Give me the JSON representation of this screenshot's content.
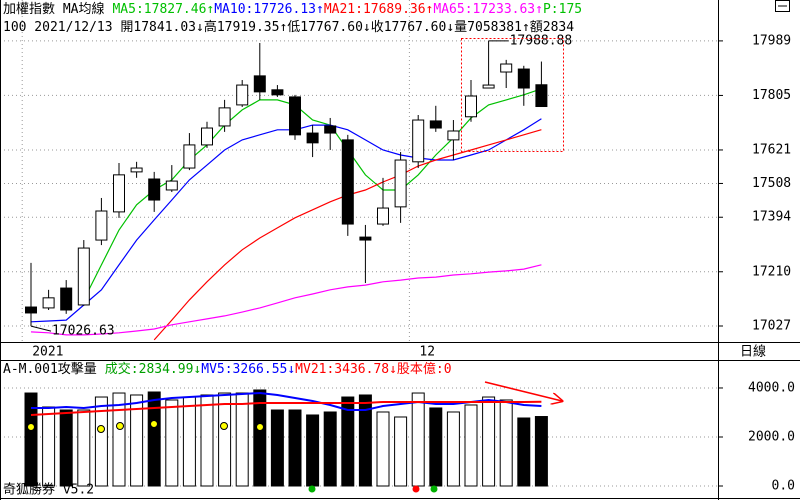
{
  "chart_data": [
    {
      "type": "candlestick",
      "title": "加權指數 MA均線",
      "info": "100 2021/12/13 開17841.03↓高17919.35↑低17767.60↓收17767.60↓量7058381↑額2834",
      "tail_label": "P:175",
      "tail_color": "#00c000",
      "categories": [
        "2021",
        null,
        null,
        null,
        null,
        null,
        null,
        null,
        null,
        null,
        null,
        null,
        null,
        null,
        null,
        null,
        null,
        null,
        null,
        null,
        null,
        null,
        "12",
        null,
        null,
        null,
        null,
        null,
        null,
        null
      ],
      "open": [
        17091,
        17088,
        17155,
        17098,
        17317,
        17412,
        17547,
        17523,
        17486,
        17560,
        17638,
        17702,
        17773,
        17871,
        17824,
        17800,
        17678,
        17702,
        17655,
        17327,
        17371,
        17429,
        17581,
        17719,
        17655,
        17733,
        17830,
        17884,
        17894,
        17841.03
      ],
      "high": [
        17240,
        17149,
        17182,
        17317,
        17459,
        17577,
        17581,
        17547,
        17570,
        17678,
        17716,
        17790,
        17857,
        17982,
        17840,
        17807,
        17705,
        17729,
        17672,
        17368,
        17527,
        17614,
        17739,
        17770,
        17722,
        17857,
        17988.88,
        17925,
        17905,
        17919.35
      ],
      "low": [
        17026.63,
        17081,
        17068,
        17095,
        17300,
        17392,
        17527,
        17412,
        17479,
        17553,
        17628,
        17682,
        17766,
        17790,
        17800,
        17655,
        17597,
        17621,
        17331,
        17172,
        17365,
        17375,
        17560,
        17682,
        17587,
        17716,
        17830,
        17830,
        17770,
        17767.6
      ],
      "close": [
        17071,
        17122,
        17081,
        17290,
        17415,
        17537,
        17560,
        17452,
        17516,
        17638,
        17695,
        17763,
        17840,
        17817,
        17807,
        17672,
        17645,
        17678,
        17371,
        17317,
        17425,
        17587,
        17722,
        17695,
        17685,
        17803,
        17840,
        17911,
        17830,
        17767.6
      ],
      "up_color": "#ffffff",
      "down_color": "#000000",
      "series": [
        {
          "name": "MA5",
          "label": "MA5:17827.46↑",
          "color": "#00c000",
          "values": [
            null,
            null,
            null,
            17115,
            17233,
            17351,
            17436,
            17486,
            17520,
            17587,
            17638,
            17705,
            17756,
            17790,
            17790,
            17773,
            17722,
            17705,
            17621,
            17537,
            17486,
            17486,
            17537,
            17604,
            17662,
            17729,
            17773,
            17790,
            17807,
            17827.46
          ]
        },
        {
          "name": "MA10",
          "label": "MA10:17726.13↑",
          "color": "#0000ff",
          "values": [
            17041,
            17044,
            17047,
            17098,
            17149,
            17233,
            17317,
            17385,
            17452,
            17520,
            17570,
            17621,
            17655,
            17672,
            17689,
            17689,
            17705,
            17705,
            17689,
            17655,
            17621,
            17604,
            17594,
            17587,
            17587,
            17604,
            17621,
            17655,
            17689,
            17726.13
          ]
        },
        {
          "name": "MA21",
          "label": "MA21:17689.36↑",
          "color": "#ff0000",
          "values": [
            null,
            null,
            null,
            null,
            null,
            null,
            null,
            16980,
            17047,
            17115,
            17176,
            17233,
            17284,
            17324,
            17358,
            17392,
            17419,
            17446,
            17469,
            17486,
            17513,
            17537,
            17567,
            17587,
            17604,
            17621,
            17638,
            17655,
            17672,
            17689.36
          ]
        },
        {
          "name": "MA65",
          "label": "MA65:17233.63↑",
          "color": "#ff00ff",
          "values": [
            17007,
            17004,
            16997,
            16997,
            17000,
            17004,
            17010,
            17017,
            17031,
            17041,
            17051,
            17061,
            17074,
            17088,
            17105,
            17122,
            17135,
            17149,
            17159,
            17165,
            17176,
            17182,
            17189,
            17192,
            17199,
            17203,
            17209,
            17213,
            17219,
            17233.63
          ]
        }
      ],
      "annotations": [
        {
          "value": 17988.88,
          "label": "17988.88"
        },
        {
          "value": 17026.63,
          "label": "17026.63"
        }
      ],
      "ylim": [
        16973,
        18127
      ],
      "yticks": [
        17027,
        17210,
        17394,
        17508,
        17621,
        17805,
        17989
      ],
      "grid": true
    },
    {
      "type": "bar",
      "title": "A-M.001攻擊量",
      "value_label": "成交:2834.99↓",
      "value_color": "#00a000",
      "values": [
        3794,
        3224,
        3101,
        3101,
        3631,
        3794,
        3714,
        3836,
        3510,
        3631,
        3714,
        3794,
        3794,
        3918,
        3101,
        3101,
        2898,
        3020,
        3631,
        3714,
        3020,
        2816,
        3794,
        3184,
        3020,
        3306,
        3631,
        3510,
        2775,
        2834.99
      ],
      "series": [
        {
          "name": "MV5",
          "label": "MV5:3266.55↓",
          "color": "#0000ff",
          "values": [
            3184,
            3184,
            3225,
            3184,
            3265,
            3306,
            3388,
            3510,
            3592,
            3633,
            3674,
            3715,
            3755,
            3796,
            3715,
            3592,
            3470,
            3306,
            3102,
            3102,
            3265,
            3347,
            3429,
            3347,
            3347,
            3429,
            3510,
            3429,
            3306,
            3266.55
          ]
        },
        {
          "name": "MV21",
          "label": "MV21:3436.78↓",
          "color": "#ff0000",
          "values": [
            2898,
            2939,
            2980,
            3020,
            3061,
            3102,
            3143,
            3184,
            3225,
            3265,
            3306,
            3347,
            3347,
            3388,
            3388,
            3388,
            3388,
            3388,
            3388,
            3388,
            3429,
            3429,
            3429,
            3429,
            3429,
            3429,
            3429,
            3429,
            3429,
            3436.78
          ]
        }
      ],
      "tail_label": "股本億:0",
      "tail_color": "#ff0000",
      "ylim": [
        0,
        5060
      ],
      "yticks": [
        {
          "value": 0,
          "label": "0.0"
        },
        {
          "value": 2000,
          "label": "2000.0"
        },
        {
          "value": 4000,
          "label": "4000.0"
        }
      ],
      "grid": true
    }
  ],
  "period": "日線",
  "footer": "奇狐勝券 v5.2"
}
